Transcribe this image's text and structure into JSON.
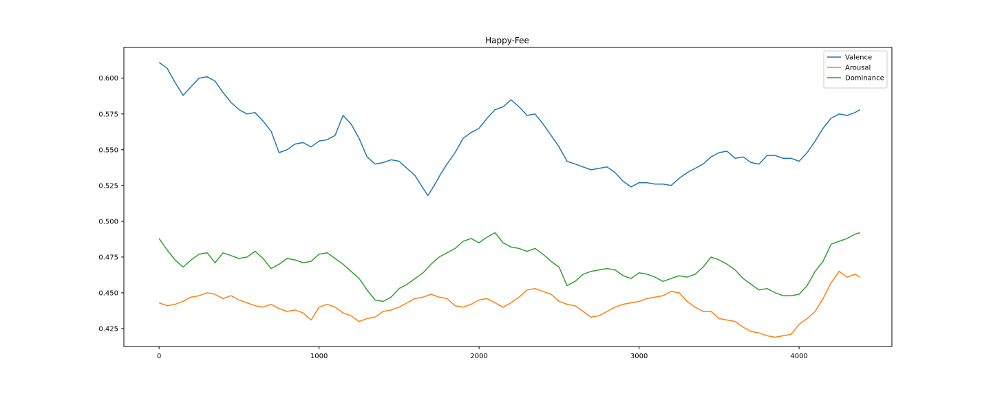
{
  "chart_data": {
    "type": "line",
    "title": "Happy-Fee",
    "xlabel": "",
    "ylabel": "",
    "xlim": [
      -220,
      4580
    ],
    "ylim": [
      0.4125,
      0.6215
    ],
    "xticks": [
      0,
      1000,
      2000,
      3000,
      4000
    ],
    "xtick_labels": [
      "0",
      "1000",
      "2000",
      "3000",
      "4000"
    ],
    "yticks": [
      0.425,
      0.45,
      0.475,
      0.5,
      0.525,
      0.55,
      0.575,
      0.6
    ],
    "ytick_labels": [
      "0.425",
      "0.450",
      "0.475",
      "0.500",
      "0.525",
      "0.550",
      "0.575",
      "0.600"
    ],
    "grid": false,
    "legend_position": "top-right",
    "series": [
      {
        "name": "Valence",
        "color": "#1f77b4",
        "x": [
          0,
          50,
          100,
          150,
          200,
          250,
          300,
          350,
          400,
          450,
          500,
          550,
          600,
          650,
          700,
          750,
          800,
          850,
          900,
          950,
          1000,
          1050,
          1100,
          1150,
          1200,
          1250,
          1300,
          1350,
          1400,
          1450,
          1500,
          1550,
          1600,
          1650,
          1680,
          1720,
          1760,
          1800,
          1850,
          1900,
          1950,
          2000,
          2050,
          2100,
          2150,
          2200,
          2250,
          2300,
          2350,
          2400,
          2450,
          2500,
          2550,
          2600,
          2650,
          2700,
          2750,
          2800,
          2850,
          2900,
          2950,
          3000,
          3050,
          3100,
          3150,
          3200,
          3250,
          3300,
          3350,
          3400,
          3450,
          3500,
          3550,
          3600,
          3650,
          3700,
          3750,
          3800,
          3850,
          3900,
          3950,
          4000,
          4050,
          4100,
          4150,
          4200,
          4250,
          4300,
          4350,
          4380
        ],
        "y": [
          0.611,
          0.607,
          0.597,
          0.588,
          0.594,
          0.6,
          0.601,
          0.598,
          0.59,
          0.583,
          0.578,
          0.575,
          0.576,
          0.57,
          0.563,
          0.548,
          0.55,
          0.554,
          0.555,
          0.552,
          0.556,
          0.557,
          0.56,
          0.574,
          0.568,
          0.558,
          0.545,
          0.54,
          0.541,
          0.543,
          0.542,
          0.537,
          0.532,
          0.523,
          0.518,
          0.525,
          0.533,
          0.54,
          0.548,
          0.558,
          0.562,
          0.565,
          0.572,
          0.578,
          0.58,
          0.585,
          0.58,
          0.574,
          0.575,
          0.568,
          0.56,
          0.552,
          0.542,
          0.54,
          0.538,
          0.536,
          0.537,
          0.538,
          0.534,
          0.528,
          0.524,
          0.527,
          0.527,
          0.526,
          0.526,
          0.525,
          0.53,
          0.534,
          0.537,
          0.54,
          0.545,
          0.548,
          0.549,
          0.544,
          0.545,
          0.541,
          0.54,
          0.546,
          0.546,
          0.544,
          0.544,
          0.542,
          0.548,
          0.556,
          0.565,
          0.572,
          0.575,
          0.574,
          0.576,
          0.578
        ]
      },
      {
        "name": "Arousal",
        "color": "#ff7f0e",
        "x": [
          0,
          50,
          100,
          150,
          200,
          250,
          300,
          350,
          400,
          450,
          500,
          550,
          600,
          650,
          700,
          750,
          800,
          850,
          900,
          950,
          1000,
          1050,
          1100,
          1150,
          1200,
          1250,
          1300,
          1350,
          1400,
          1450,
          1500,
          1550,
          1600,
          1650,
          1700,
          1750,
          1800,
          1850,
          1900,
          1950,
          2000,
          2050,
          2100,
          2150,
          2200,
          2250,
          2300,
          2350,
          2400,
          2450,
          2500,
          2550,
          2600,
          2650,
          2700,
          2750,
          2800,
          2850,
          2900,
          2950,
          3000,
          3050,
          3100,
          3150,
          3200,
          3250,
          3300,
          3350,
          3400,
          3450,
          3500,
          3550,
          3600,
          3650,
          3700,
          3750,
          3800,
          3850,
          3900,
          3950,
          4000,
          4050,
          4100,
          4150,
          4200,
          4250,
          4300,
          4350,
          4380
        ],
        "y": [
          0.443,
          0.441,
          0.442,
          0.444,
          0.447,
          0.448,
          0.45,
          0.449,
          0.446,
          0.448,
          0.445,
          0.443,
          0.441,
          0.44,
          0.442,
          0.439,
          0.437,
          0.438,
          0.436,
          0.431,
          0.44,
          0.442,
          0.44,
          0.436,
          0.434,
          0.43,
          0.432,
          0.433,
          0.437,
          0.438,
          0.44,
          0.443,
          0.446,
          0.447,
          0.449,
          0.447,
          0.446,
          0.441,
          0.44,
          0.442,
          0.445,
          0.446,
          0.443,
          0.44,
          0.443,
          0.447,
          0.452,
          0.453,
          0.451,
          0.449,
          0.444,
          0.442,
          0.441,
          0.437,
          0.433,
          0.434,
          0.437,
          0.44,
          0.442,
          0.443,
          0.444,
          0.446,
          0.447,
          0.448,
          0.451,
          0.45,
          0.444,
          0.44,
          0.437,
          0.437,
          0.432,
          0.431,
          0.43,
          0.426,
          0.423,
          0.422,
          0.42,
          0.419,
          0.42,
          0.421,
          0.428,
          0.432,
          0.437,
          0.446,
          0.457,
          0.465,
          0.461,
          0.463,
          0.461
        ]
      },
      {
        "name": "Dominance",
        "color": "#2ca02c",
        "x": [
          0,
          50,
          100,
          150,
          200,
          250,
          300,
          350,
          400,
          450,
          500,
          550,
          600,
          650,
          700,
          750,
          800,
          850,
          900,
          950,
          1000,
          1050,
          1100,
          1150,
          1200,
          1250,
          1300,
          1350,
          1400,
          1450,
          1500,
          1550,
          1600,
          1650,
          1700,
          1750,
          1800,
          1850,
          1900,
          1950,
          2000,
          2050,
          2100,
          2150,
          2200,
          2250,
          2300,
          2350,
          2400,
          2450,
          2500,
          2550,
          2600,
          2650,
          2700,
          2750,
          2800,
          2850,
          2900,
          2950,
          3000,
          3050,
          3100,
          3150,
          3200,
          3250,
          3300,
          3350,
          3400,
          3450,
          3500,
          3550,
          3600,
          3650,
          3700,
          3750,
          3800,
          3850,
          3900,
          3950,
          4000,
          4050,
          4100,
          4150,
          4200,
          4250,
          4300,
          4350,
          4380
        ],
        "y": [
          0.488,
          0.48,
          0.473,
          0.468,
          0.473,
          0.477,
          0.478,
          0.471,
          0.478,
          0.476,
          0.474,
          0.475,
          0.479,
          0.474,
          0.467,
          0.47,
          0.474,
          0.473,
          0.471,
          0.472,
          0.477,
          0.478,
          0.474,
          0.47,
          0.465,
          0.46,
          0.452,
          0.445,
          0.444,
          0.447,
          0.453,
          0.456,
          0.46,
          0.464,
          0.47,
          0.475,
          0.478,
          0.481,
          0.486,
          0.488,
          0.485,
          0.489,
          0.492,
          0.485,
          0.482,
          0.481,
          0.479,
          0.481,
          0.477,
          0.472,
          0.468,
          0.455,
          0.458,
          0.463,
          0.465,
          0.466,
          0.467,
          0.466,
          0.462,
          0.46,
          0.464,
          0.463,
          0.461,
          0.458,
          0.46,
          0.462,
          0.461,
          0.463,
          0.468,
          0.475,
          0.473,
          0.47,
          0.466,
          0.46,
          0.456,
          0.452,
          0.453,
          0.45,
          0.448,
          0.448,
          0.449,
          0.455,
          0.465,
          0.472,
          0.484,
          0.486,
          0.488,
          0.491,
          0.492
        ]
      }
    ]
  }
}
